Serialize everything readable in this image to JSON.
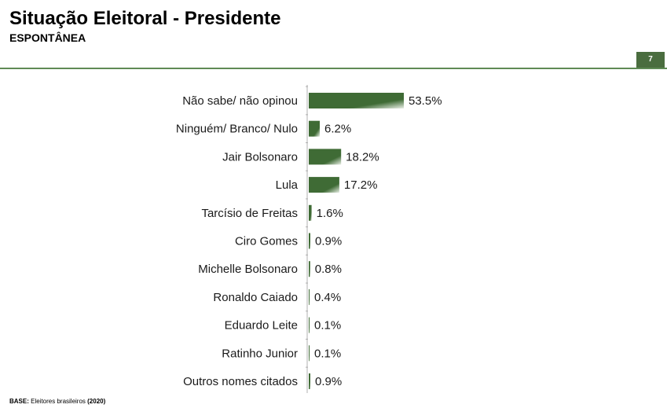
{
  "header": {
    "title": "Situação Eleitoral - Presidente",
    "subtitle": "ESPONTÂNEA",
    "page_number": "7"
  },
  "footer": {
    "base_label": "BASE:",
    "base_text": " Eleitores brasileiros ",
    "base_year": "(2020)"
  },
  "colors": {
    "bar_dark": "#3f6b35",
    "bar_light": "#e9efe6",
    "axis": "#b0b0b0",
    "accent": "#4a6d3f"
  },
  "chart_data": {
    "type": "bar",
    "orientation": "horizontal",
    "title": "",
    "xlabel": "",
    "ylabel": "",
    "value_suffix": "%",
    "xlim": [
      0,
      53.5
    ],
    "grid": false,
    "legend": "none",
    "categories": [
      "Não sabe/ não opinou",
      "Ninguém/ Branco/ Nulo",
      "Jair Bolsonaro",
      "Lula",
      "Tarcísio de Freitas",
      "Ciro Gomes",
      "Michelle Bolsonaro",
      "Ronaldo Caiado",
      "Eduardo Leite",
      "Ratinho Junior",
      "Outros nomes citados"
    ],
    "values": [
      53.5,
      6.2,
      18.2,
      17.2,
      1.6,
      0.9,
      0.8,
      0.4,
      0.1,
      0.1,
      0.9
    ],
    "value_labels": [
      "53.5%",
      "6.2%",
      "18.2%",
      "17.2%",
      "1.6%",
      "0.9%",
      "0.8%",
      "0.4%",
      "0.1%",
      "0.1%",
      "0.9%"
    ]
  }
}
